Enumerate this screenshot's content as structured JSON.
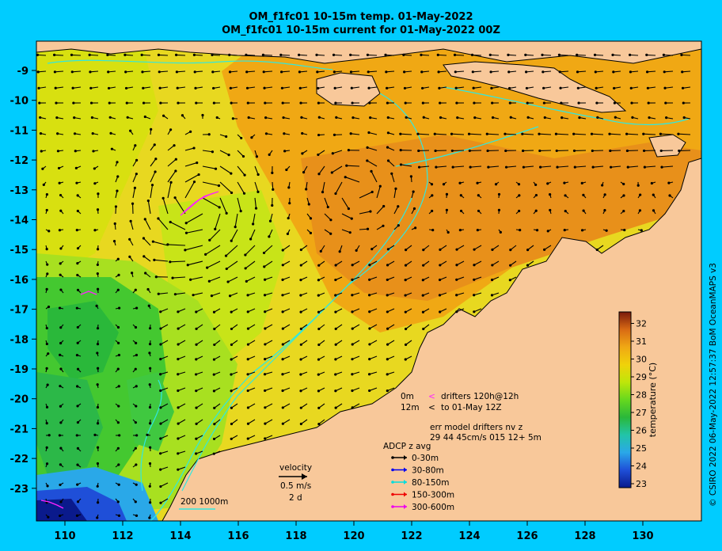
{
  "title_line1": "OM_f1fc01 10-15m temp. 01-May-2022",
  "title_line2": "OM_f1fc01 10-15m current for 01-May-2022 00Z",
  "lon_ticks": [
    "110",
    "112",
    "114",
    "116",
    "118",
    "120",
    "122",
    "124",
    "126",
    "128",
    "130"
  ],
  "lat_ticks": [
    "-9",
    "-10",
    "-11",
    "-12",
    "-13",
    "-14",
    "-15",
    "-16",
    "-17",
    "-18",
    "-19",
    "-20",
    "-21",
    "-22",
    "-23"
  ],
  "colorbar": {
    "label": "temperature (°C)",
    "ticks": [
      "23",
      "24",
      "25",
      "26",
      "27",
      "28",
      "29",
      "30",
      "31",
      "32"
    ],
    "colors": [
      "#0a1a8c",
      "#1f4fd8",
      "#2aa8e8",
      "#22c4a8",
      "#2ab83a",
      "#66d81e",
      "#bfe60a",
      "#f0d20a",
      "#f0a814",
      "#d86a14",
      "#7a1a0a"
    ]
  },
  "drifters": {
    "depth_0": "0m",
    "depth_12": "12m",
    "marker_pink": "<",
    "marker_black": "<",
    "line1": "drifters 120h@12h",
    "line2": "to 01-May 12Z",
    "err_title": "err model drifters nv z",
    "err_values": "29 44 45cm/s 015 12+ 5m"
  },
  "adcp": {
    "title": "ADCP z avg",
    "items": [
      {
        "label": "0-30m",
        "color": "#000000"
      },
      {
        "label": "30-80m",
        "color": "#0000ee"
      },
      {
        "label": "80-150m",
        "color": "#00dddd"
      },
      {
        "label": "150-300m",
        "color": "#ee0000"
      },
      {
        "label": "300-600m",
        "color": "#ee00ee"
      }
    ]
  },
  "velocity": {
    "title": "velocity",
    "scale": "0.5 m/s",
    "duration": "2 d"
  },
  "isobaths": "200  1000m",
  "credit": "© CSIRO 2022  06-May-2022 12:57:37 BoM OceanMAPS v3",
  "colors": {
    "land": "#f8c89a",
    "background": "#00ccff",
    "isobath": "#30e8e0"
  }
}
